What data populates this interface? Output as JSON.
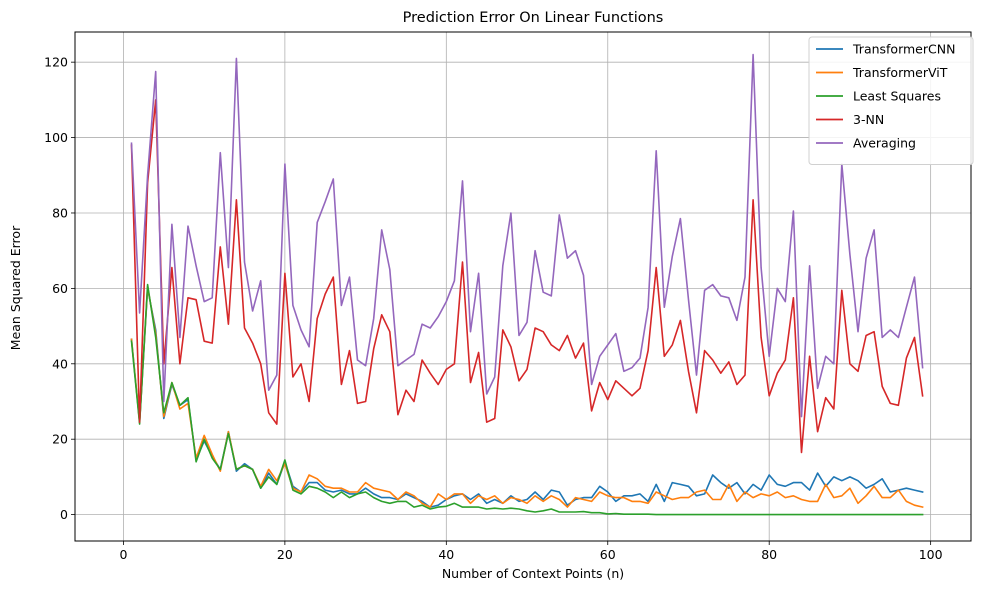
{
  "chart_data": {
    "type": "line",
    "title": "Prediction Error On Linear Functions",
    "xlabel": "Number of Context Points (n)",
    "ylabel": "Mean Squared Error",
    "xlim": [
      -6,
      105
    ],
    "ylim": [
      -7,
      128
    ],
    "xticks": [
      0,
      20,
      40,
      60,
      80,
      100
    ],
    "yticks": [
      0,
      20,
      40,
      60,
      80,
      100,
      120
    ],
    "grid": true,
    "legend_position": "top-right",
    "x": [
      1,
      2,
      3,
      4,
      5,
      6,
      7,
      8,
      9,
      10,
      11,
      12,
      13,
      14,
      15,
      16,
      17,
      18,
      19,
      20,
      21,
      22,
      23,
      24,
      25,
      26,
      27,
      28,
      29,
      30,
      31,
      32,
      33,
      34,
      35,
      36,
      37,
      38,
      39,
      40,
      41,
      42,
      43,
      44,
      45,
      46,
      47,
      48,
      49,
      50,
      51,
      52,
      53,
      54,
      55,
      56,
      57,
      58,
      59,
      60,
      61,
      62,
      63,
      64,
      65,
      66,
      67,
      68,
      69,
      70,
      71,
      72,
      73,
      74,
      75,
      76,
      77,
      78,
      79,
      80,
      81,
      82,
      83,
      84,
      85,
      86,
      87,
      88,
      89,
      90,
      91,
      92,
      93,
      94,
      95,
      96,
      97,
      98,
      99
    ],
    "series": [
      {
        "name": "TransformerCNN",
        "color": "#1f77b4",
        "values": [
          46.5,
          24.5,
          60,
          49,
          25.5,
          34.5,
          29,
          30.5,
          14.5,
          19.5,
          15.5,
          12,
          22,
          11.5,
          13.5,
          12,
          7,
          11,
          8,
          14,
          7.5,
          6,
          8.5,
          8.5,
          6.5,
          6,
          6.5,
          5.5,
          5.5,
          7,
          5.5,
          4.5,
          4.5,
          4,
          5.5,
          4.5,
          3.5,
          2,
          2.5,
          4,
          5,
          5.5,
          4,
          5.5,
          3,
          4,
          3,
          5,
          3.5,
          4,
          6,
          4,
          6.5,
          6,
          2.5,
          4,
          4.5,
          4.5,
          7.5,
          6,
          3.5,
          5,
          5,
          5.5,
          3.5,
          8,
          3.5,
          8.5,
          8,
          7.5,
          5,
          5.5,
          10.5,
          8.5,
          7,
          8.5,
          5.5,
          8,
          6.5,
          10.5,
          8,
          7.5,
          8.5,
          8.5,
          6.5,
          11,
          7.5,
          10,
          9,
          10,
          9,
          7,
          8,
          9.5,
          6,
          6.5,
          7,
          6.5,
          6
        ]
      },
      {
        "name": "TransformerViT",
        "color": "#ff7f0e",
        "values": [
          46.5,
          24.5,
          60.5,
          48,
          26,
          35,
          28,
          29.5,
          15,
          21,
          16,
          11.5,
          22,
          12,
          13,
          12,
          7.5,
          12,
          9,
          13.5,
          7,
          6,
          10.5,
          9.5,
          7.5,
          7,
          7,
          6,
          6,
          8.5,
          7,
          6.5,
          6,
          4,
          6,
          5,
          3,
          2,
          5.5,
          4,
          5.5,
          5.5,
          3,
          5,
          4,
          5,
          3,
          4.5,
          4,
          3,
          5,
          3.5,
          5,
          4,
          2,
          4.5,
          4,
          3.5,
          6,
          5,
          4.5,
          4.5,
          3.5,
          3.5,
          3,
          6,
          5,
          4,
          4.5,
          4.5,
          6,
          6.5,
          4,
          4,
          8,
          3.5,
          6,
          4.5,
          5.5,
          5,
          6,
          4.5,
          5,
          4,
          3.5,
          3.5,
          8,
          4.5,
          5,
          7,
          3,
          5,
          7.5,
          4.5,
          4.5,
          6.5,
          3.5,
          2.5,
          2
        ]
      },
      {
        "name": "Least Squares",
        "color": "#2ca02c",
        "values": [
          46,
          24,
          61,
          47,
          27,
          35,
          29,
          31,
          14,
          20,
          15,
          12,
          21.5,
          12,
          13,
          12,
          7,
          10,
          8,
          14.5,
          6.5,
          5.5,
          7.5,
          7,
          6,
          4.5,
          6,
          4.5,
          5.5,
          6,
          4.5,
          3.5,
          3,
          3.5,
          3.5,
          2,
          2.5,
          1.5,
          2,
          2.2,
          3,
          2,
          2,
          2,
          1.5,
          1.7,
          1.5,
          1.7,
          1.5,
          1,
          0.7,
          1,
          1.5,
          0.7,
          0.7,
          0.7,
          0.8,
          0.5,
          0.5,
          0.2,
          0.3,
          0.1,
          0.1,
          0.1,
          0.1,
          0,
          0,
          0,
          0,
          0,
          0,
          0,
          0,
          0,
          0,
          0,
          0,
          0,
          0,
          0,
          0,
          0,
          0,
          0,
          0,
          0,
          0,
          0,
          0,
          0,
          0,
          0,
          0,
          0,
          0,
          0,
          0,
          0,
          0
        ]
      },
      {
        "name": "3-NN",
        "color": "#d62728",
        "values": [
          98,
          24.5,
          88,
          110,
          40,
          65.5,
          40,
          57.5,
          57,
          46,
          45.5,
          71,
          50.5,
          83.5,
          49.5,
          45.5,
          40,
          27,
          24,
          64,
          36.5,
          40,
          30,
          52,
          58.5,
          63,
          34.5,
          43.5,
          29.5,
          30,
          44,
          53,
          48.5,
          26.5,
          33,
          30,
          41,
          37.5,
          34.5,
          38.5,
          40,
          67,
          35,
          43,
          24.5,
          25.5,
          49,
          44.5,
          35.5,
          38.5,
          49.5,
          48.5,
          45,
          43.5,
          47.5,
          41.5,
          45.5,
          27.5,
          35,
          30.5,
          35.5,
          33.5,
          31.5,
          33.5,
          43.5,
          65.5,
          42,
          45,
          51.5,
          38,
          27,
          43.5,
          41,
          37.5,
          40.5,
          34.5,
          37,
          83.5,
          47,
          31.5,
          37.5,
          41,
          57.5,
          16.5,
          42,
          22,
          31,
          28,
          59.5,
          40,
          38,
          47.5,
          48.5,
          34,
          29.5,
          29,
          41.5,
          47,
          31.5
        ]
      },
      {
        "name": "Averaging",
        "color": "#9467bd",
        "values": [
          98.5,
          53.5,
          90,
          117.5,
          30,
          77,
          47,
          76.5,
          66,
          56.5,
          57.5,
          96,
          65.5,
          121,
          67,
          54,
          62,
          33,
          37,
          93,
          55.5,
          49,
          44.5,
          77.5,
          83,
          89,
          55.5,
          63,
          41,
          39.5,
          52,
          75.5,
          65,
          39.5,
          41,
          42.5,
          50.5,
          49.5,
          52.5,
          56.5,
          62,
          88.5,
          48.5,
          64,
          32,
          36.5,
          66,
          80,
          47.5,
          51,
          70,
          59,
          58,
          79.5,
          68,
          70,
          63.5,
          34.5,
          42,
          45,
          48,
          38,
          39,
          41.5,
          55,
          96.5,
          55,
          68.5,
          78.5,
          57,
          37,
          59.5,
          61,
          58,
          57.5,
          51.5,
          63,
          122,
          65.5,
          42,
          60,
          56.5,
          80.5,
          26,
          66,
          33.5,
          42,
          40,
          93,
          69,
          48.5,
          68,
          75.5,
          47,
          49,
          47,
          55,
          63,
          39
        ]
      }
    ]
  }
}
